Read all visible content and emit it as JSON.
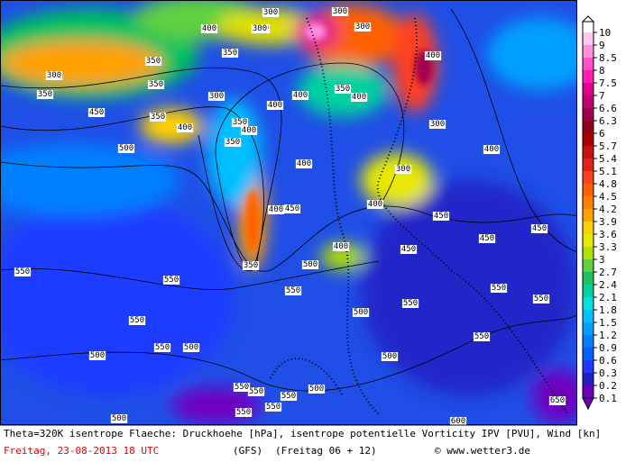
{
  "map": {
    "contour_labels": [
      300,
      300,
      300,
      350,
      300,
      350,
      300,
      350,
      300,
      350,
      350,
      400,
      450,
      350,
      400,
      400,
      350,
      350,
      400,
      300,
      400,
      400,
      400,
      400,
      300,
      400,
      300,
      500,
      400,
      400,
      450,
      450,
      450,
      450,
      400,
      450,
      350,
      500,
      550,
      550,
      550,
      550,
      500,
      550,
      500,
      500,
      550,
      550,
      550,
      500,
      550,
      550,
      500,
      550,
      550,
      500,
      600,
      650,
      550,
      550
    ]
  },
  "colorbar": {
    "ticks": [
      10,
      9,
      8.5,
      8,
      7.5,
      7,
      6.6,
      6.3,
      6,
      5.7,
      5.4,
      5.1,
      4.8,
      4.5,
      4.2,
      3.9,
      3.6,
      3.3,
      3,
      2.7,
      2.4,
      2.1,
      1.8,
      1.5,
      1.2,
      0.9,
      0.6,
      0.3,
      0.2,
      0.1
    ],
    "colors": [
      "#ffffff",
      "#ffc8f0",
      "#ff90e0",
      "#ff50c8",
      "#ff20b0",
      "#e0008c",
      "#c00070",
      "#a00050",
      "#900018",
      "#a80000",
      "#c81010",
      "#e02020",
      "#ff4020",
      "#ff6000",
      "#ff8000",
      "#ffa000",
      "#ffd000",
      "#e8e800",
      "#b0e000",
      "#60d040",
      "#20c060",
      "#00d0a0",
      "#00e0e0",
      "#00c0ff",
      "#00a0ff",
      "#0080ff",
      "#0060ff",
      "#1e3cff",
      "#2020c0",
      "#7000c0"
    ]
  },
  "caption": {
    "line1": "Theta=320K isentrope Flaeche: Druckhoehe [hPa], isentrope potentielle Vorticity IPV [PVU], Wind [kn]",
    "date": "Freitag, 23-08-2013  18 UTC",
    "model": "(GFS)",
    "run": "(Freitag 06 + 12)",
    "credit": "© www.wetter3.de"
  }
}
